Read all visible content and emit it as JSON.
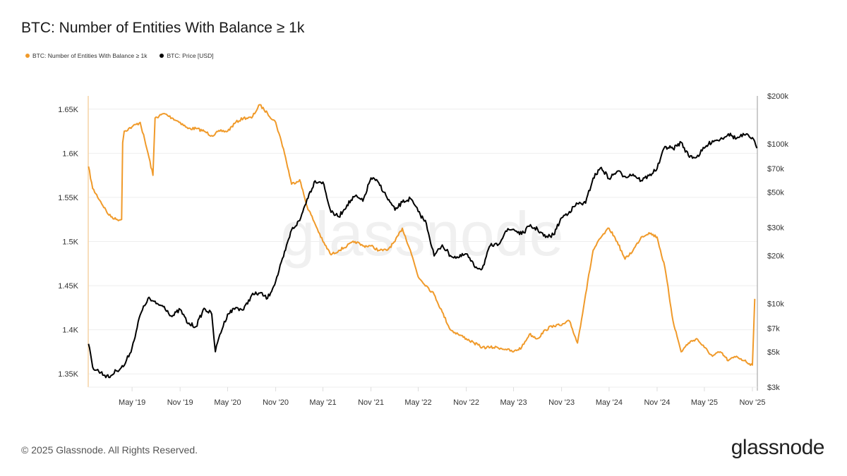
{
  "title": "BTC: Number of Entities With Balance ≥ 1k",
  "legend": [
    {
      "label": "BTC: Number of Entities With Balance ≥ 1k",
      "color": "#f09a2a"
    },
    {
      "label": "BTC: Price [USD]",
      "color": "#000000"
    }
  ],
  "footer": "© 2025 Glassnode. All Rights Reserved.",
  "logo": "glassnode",
  "watermark": "glassnode",
  "chart_data": {
    "type": "line",
    "title": "BTC: Number of Entities With Balance ≥ 1k",
    "grid": true,
    "legend_position": "top-left",
    "x_range": [
      "2018-11-14",
      "2025-11-20"
    ],
    "x_ticks": [
      "May '19",
      "Nov '19",
      "May '20",
      "Nov '20",
      "May '21",
      "Nov '21",
      "May '22",
      "Nov '22",
      "May '23",
      "Nov '23",
      "May '24",
      "Nov '24",
      "May '25",
      "Nov '25"
    ],
    "y_left": {
      "ticks": [
        "1.35K",
        "1.4K",
        "1.45K",
        "1.5K",
        "1.55K",
        "1.6K",
        "1.65K"
      ],
      "range": [
        1335,
        1665
      ],
      "scale": "linear"
    },
    "y_right": {
      "ticks": [
        "$3k",
        "$5k",
        "$7k",
        "$10k",
        "$20k",
        "$30k",
        "$50k",
        "$70k",
        "$100k",
        "$200k"
      ],
      "range": [
        3000,
        200000
      ],
      "scale": "log"
    },
    "series": [
      {
        "name": "BTC: Number of Entities With Balance ≥ 1k",
        "axis": "left",
        "color": "#f09a2a",
        "points": [
          [
            "2018-11-15",
            1585
          ],
          [
            "2018-12-01",
            1560
          ],
          [
            "2019-01-01",
            1545
          ],
          [
            "2019-02-01",
            1530
          ],
          [
            "2019-03-01",
            1525
          ],
          [
            "2019-03-22",
            1525
          ],
          [
            "2019-03-26",
            1612
          ],
          [
            "2019-04-01",
            1625
          ],
          [
            "2019-05-01",
            1630
          ],
          [
            "2019-06-01",
            1635
          ],
          [
            "2019-07-01",
            1600
          ],
          [
            "2019-07-20",
            1575
          ],
          [
            "2019-07-28",
            1640
          ],
          [
            "2019-09-01",
            1645
          ],
          [
            "2019-10-01",
            1640
          ],
          [
            "2019-11-01",
            1635
          ],
          [
            "2019-12-01",
            1628
          ],
          [
            "2020-01-01",
            1628
          ],
          [
            "2020-02-01",
            1625
          ],
          [
            "2020-03-01",
            1620
          ],
          [
            "2020-04-01",
            1625
          ],
          [
            "2020-05-01",
            1625
          ],
          [
            "2020-06-01",
            1635
          ],
          [
            "2020-07-01",
            1640
          ],
          [
            "2020-08-01",
            1640
          ],
          [
            "2020-09-01",
            1655
          ],
          [
            "2020-10-01",
            1645
          ],
          [
            "2020-11-01",
            1635
          ],
          [
            "2020-12-01",
            1605
          ],
          [
            "2021-01-01",
            1565
          ],
          [
            "2021-02-01",
            1570
          ],
          [
            "2021-03-01",
            1540
          ],
          [
            "2021-04-01",
            1520
          ],
          [
            "2021-05-01",
            1500
          ],
          [
            "2021-06-01",
            1485
          ],
          [
            "2021-07-01",
            1490
          ],
          [
            "2021-08-01",
            1495
          ],
          [
            "2021-09-01",
            1500
          ],
          [
            "2021-10-01",
            1495
          ],
          [
            "2021-11-01",
            1495
          ],
          [
            "2021-12-01",
            1490
          ],
          [
            "2022-01-01",
            1490
          ],
          [
            "2022-02-01",
            1500
          ],
          [
            "2022-03-01",
            1515
          ],
          [
            "2022-04-01",
            1490
          ],
          [
            "2022-05-01",
            1460
          ],
          [
            "2022-06-01",
            1450
          ],
          [
            "2022-07-01",
            1440
          ],
          [
            "2022-08-01",
            1420
          ],
          [
            "2022-09-01",
            1400
          ],
          [
            "2022-10-01",
            1395
          ],
          [
            "2022-11-01",
            1390
          ],
          [
            "2022-12-01",
            1385
          ],
          [
            "2023-01-01",
            1380
          ],
          [
            "2023-02-01",
            1380
          ],
          [
            "2023-03-01",
            1380
          ],
          [
            "2023-04-01",
            1378
          ],
          [
            "2023-05-01",
            1375
          ],
          [
            "2023-06-01",
            1380
          ],
          [
            "2023-07-01",
            1395
          ],
          [
            "2023-08-01",
            1390
          ],
          [
            "2023-09-01",
            1400
          ],
          [
            "2023-10-01",
            1405
          ],
          [
            "2023-11-01",
            1405
          ],
          [
            "2023-12-01",
            1410
          ],
          [
            "2024-01-01",
            1385
          ],
          [
            "2024-02-01",
            1440
          ],
          [
            "2024-03-01",
            1490
          ],
          [
            "2024-04-01",
            1505
          ],
          [
            "2024-05-01",
            1515
          ],
          [
            "2024-06-01",
            1500
          ],
          [
            "2024-07-01",
            1480
          ],
          [
            "2024-08-01",
            1490
          ],
          [
            "2024-09-01",
            1505
          ],
          [
            "2024-10-01",
            1510
          ],
          [
            "2024-11-01",
            1505
          ],
          [
            "2024-12-01",
            1470
          ],
          [
            "2025-01-01",
            1410
          ],
          [
            "2025-02-01",
            1375
          ],
          [
            "2025-03-01",
            1385
          ],
          [
            "2025-04-01",
            1390
          ],
          [
            "2025-05-01",
            1380
          ],
          [
            "2025-06-01",
            1370
          ],
          [
            "2025-07-01",
            1375
          ],
          [
            "2025-08-01",
            1365
          ],
          [
            "2025-09-01",
            1370
          ],
          [
            "2025-10-01",
            1365
          ],
          [
            "2025-11-01",
            1360
          ],
          [
            "2025-11-10",
            1435
          ]
        ]
      },
      {
        "name": "BTC: Price [USD]",
        "axis": "right",
        "color": "#000000",
        "points": [
          [
            "2018-11-15",
            5600
          ],
          [
            "2018-12-01",
            4000
          ],
          [
            "2019-01-01",
            3700
          ],
          [
            "2019-02-01",
            3450
          ],
          [
            "2019-03-01",
            3800
          ],
          [
            "2019-04-01",
            4100
          ],
          [
            "2019-05-01",
            5300
          ],
          [
            "2019-06-01",
            8500
          ],
          [
            "2019-07-01",
            10800
          ],
          [
            "2019-08-01",
            10000
          ],
          [
            "2019-09-01",
            9600
          ],
          [
            "2019-10-01",
            8300
          ],
          [
            "2019-11-01",
            9200
          ],
          [
            "2019-12-01",
            7500
          ],
          [
            "2020-01-01",
            7200
          ],
          [
            "2020-02-01",
            9350
          ],
          [
            "2020-03-01",
            8600
          ],
          [
            "2020-03-15",
            5000
          ],
          [
            "2020-04-01",
            6400
          ],
          [
            "2020-05-01",
            8600
          ],
          [
            "2020-06-01",
            9450
          ],
          [
            "2020-07-01",
            9150
          ],
          [
            "2020-08-01",
            11300
          ],
          [
            "2020-09-01",
            11650
          ],
          [
            "2020-10-01",
            10800
          ],
          [
            "2020-11-01",
            13800
          ],
          [
            "2020-12-01",
            19700
          ],
          [
            "2021-01-01",
            29000
          ],
          [
            "2021-02-01",
            33100
          ],
          [
            "2021-03-01",
            45200
          ],
          [
            "2021-04-01",
            58800
          ],
          [
            "2021-05-01",
            57700
          ],
          [
            "2021-06-01",
            37300
          ],
          [
            "2021-07-01",
            35000
          ],
          [
            "2021-08-01",
            41500
          ],
          [
            "2021-09-01",
            47100
          ],
          [
            "2021-10-01",
            43800
          ],
          [
            "2021-11-01",
            61300
          ],
          [
            "2021-12-01",
            57000
          ],
          [
            "2022-01-01",
            46300
          ],
          [
            "2022-02-01",
            38500
          ],
          [
            "2022-03-01",
            43200
          ],
          [
            "2022-04-01",
            45500
          ],
          [
            "2022-05-01",
            37700
          ],
          [
            "2022-06-01",
            31800
          ],
          [
            "2022-07-01",
            19900
          ],
          [
            "2022-08-01",
            23300
          ],
          [
            "2022-09-01",
            20000
          ],
          [
            "2022-10-01",
            19400
          ],
          [
            "2022-11-01",
            20500
          ],
          [
            "2022-12-01",
            17200
          ],
          [
            "2023-01-01",
            16550
          ],
          [
            "2023-02-01",
            23100
          ],
          [
            "2023-03-01",
            23150
          ],
          [
            "2023-04-01",
            28500
          ],
          [
            "2023-05-01",
            29250
          ],
          [
            "2023-06-01",
            27200
          ],
          [
            "2023-07-01",
            30500
          ],
          [
            "2023-08-01",
            29250
          ],
          [
            "2023-09-01",
            26000
          ],
          [
            "2023-10-01",
            27000
          ],
          [
            "2023-11-01",
            34500
          ],
          [
            "2023-12-01",
            37700
          ],
          [
            "2024-01-01",
            42300
          ],
          [
            "2024-02-01",
            42600
          ],
          [
            "2024-03-01",
            61200
          ],
          [
            "2024-04-01",
            71300
          ],
          [
            "2024-05-01",
            60600
          ],
          [
            "2024-06-01",
            67500
          ],
          [
            "2024-07-01",
            62700
          ],
          [
            "2024-08-01",
            64600
          ],
          [
            "2024-09-01",
            59000
          ],
          [
            "2024-10-01",
            63300
          ],
          [
            "2024-11-01",
            70200
          ],
          [
            "2024-12-01",
            96400
          ],
          [
            "2025-01-01",
            93400
          ],
          [
            "2025-02-01",
            102400
          ],
          [
            "2025-03-01",
            84400
          ],
          [
            "2025-04-01",
            82500
          ],
          [
            "2025-05-01",
            94200
          ],
          [
            "2025-06-01",
            104600
          ],
          [
            "2025-07-01",
            107100
          ],
          [
            "2025-08-01",
            115700
          ],
          [
            "2025-09-01",
            108200
          ],
          [
            "2025-10-01",
            114000
          ],
          [
            "2025-11-01",
            109500
          ],
          [
            "2025-11-18",
            94000
          ]
        ]
      }
    ]
  }
}
